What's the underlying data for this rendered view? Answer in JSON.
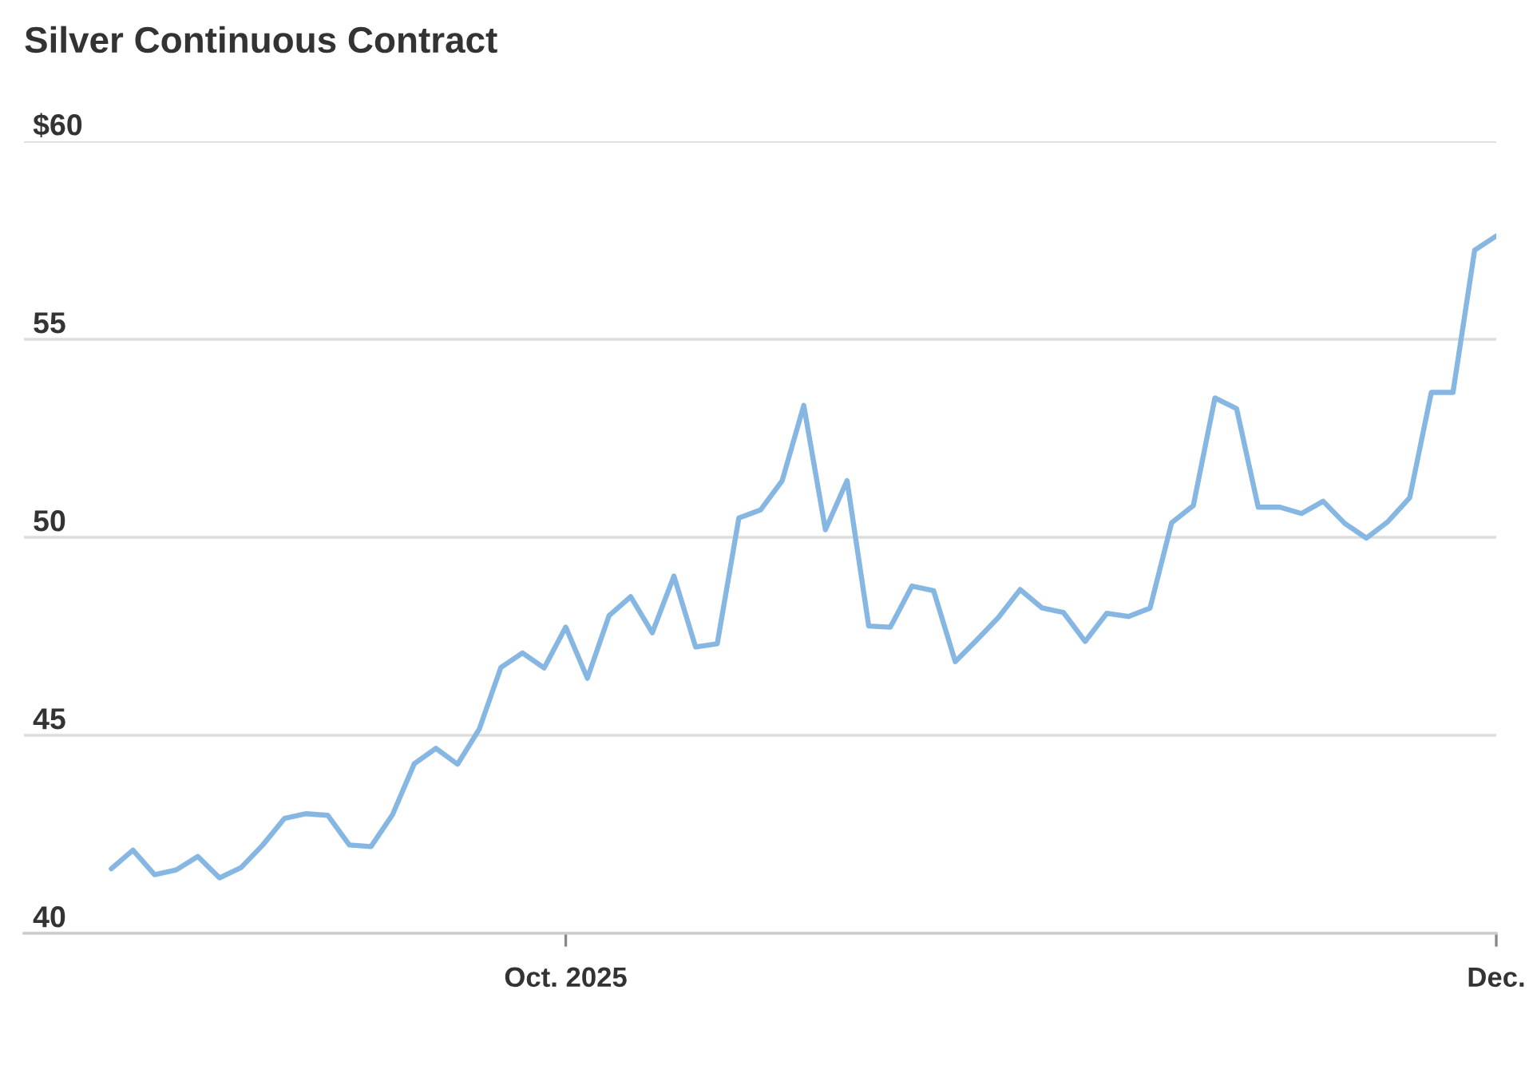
{
  "chart_data": {
    "type": "line",
    "title": "Silver Continuous Contract",
    "categories": [
      null,
      null,
      null,
      null,
      null,
      null,
      null,
      null,
      null,
      null,
      null,
      null,
      null,
      null,
      null,
      null,
      null,
      null,
      null,
      null,
      null,
      "Oct. 2025",
      null,
      null,
      null,
      null,
      null,
      null,
      null,
      null,
      null,
      null,
      null,
      null,
      null,
      null,
      null,
      null,
      null,
      null,
      null,
      null,
      null,
      null,
      null,
      null,
      null,
      null,
      null,
      null,
      null,
      null,
      null,
      null,
      null,
      null,
      null,
      null,
      null,
      null,
      null,
      null,
      null,
      null,
      "Dec."
    ],
    "values": [
      41.63,
      42.1,
      41.48,
      41.6,
      41.94,
      41.4,
      41.66,
      42.23,
      42.9,
      43.02,
      42.98,
      42.23,
      42.19,
      43.0,
      44.28,
      44.67,
      44.27,
      45.15,
      46.71,
      47.08,
      46.7,
      47.73,
      46.44,
      48.02,
      48.5,
      47.59,
      49.02,
      47.23,
      47.31,
      50.49,
      50.69,
      51.43,
      53.33,
      50.19,
      51.43,
      47.76,
      47.73,
      48.77,
      48.65,
      46.86,
      47.41,
      47.98,
      48.68,
      48.22,
      48.1,
      47.37,
      48.08,
      48.0,
      48.21,
      50.37,
      50.8,
      53.52,
      53.25,
      50.76,
      50.76,
      50.6,
      50.91,
      50.35,
      49.98,
      50.4,
      51.0,
      53.66,
      53.66,
      57.25,
      57.61
    ],
    "color": "#86b7e3",
    "line_style": "solid",
    "marker": "none",
    "ylim": [
      40,
      60
    ],
    "yticks": [
      {
        "value": 60,
        "label": "$60"
      },
      55,
      50,
      45,
      40
    ],
    "grid": "y"
  }
}
